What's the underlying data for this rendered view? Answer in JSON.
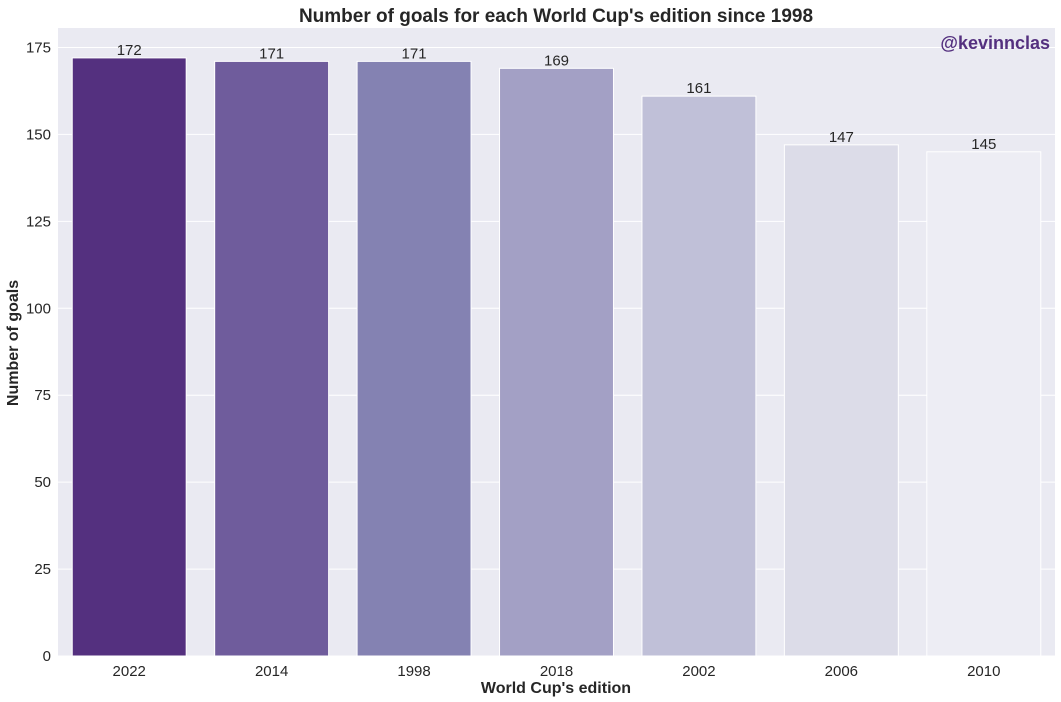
{
  "chart_data": {
    "type": "bar",
    "title": "Number of goals for each World Cup's edition since 1998",
    "xlabel": "World Cup's edition",
    "ylabel": "Number of goals",
    "categories": [
      "2022",
      "2014",
      "1998",
      "2018",
      "2002",
      "2006",
      "2010"
    ],
    "values": [
      172,
      171,
      171,
      169,
      161,
      147,
      145
    ],
    "data_labels": [
      "172",
      "171",
      "171",
      "169",
      "161",
      "147",
      "145"
    ],
    "ylim": [
      0,
      180.6
    ],
    "yticks": [
      0,
      25,
      50,
      75,
      100,
      125,
      150,
      175
    ],
    "ytick_labels": [
      "0",
      "25",
      "50",
      "75",
      "100",
      "125",
      "150",
      "175"
    ],
    "grid": true,
    "legend": "none",
    "colors": [
      "#54307f",
      "#6f5c9c",
      "#8482b2",
      "#a3a0c5",
      "#c0c0d8",
      "#dcdce8",
      "#ededf4"
    ],
    "background": "#eaeaf2",
    "watermark": {
      "text": "@kevinnclas",
      "color": "#54307f"
    }
  }
}
